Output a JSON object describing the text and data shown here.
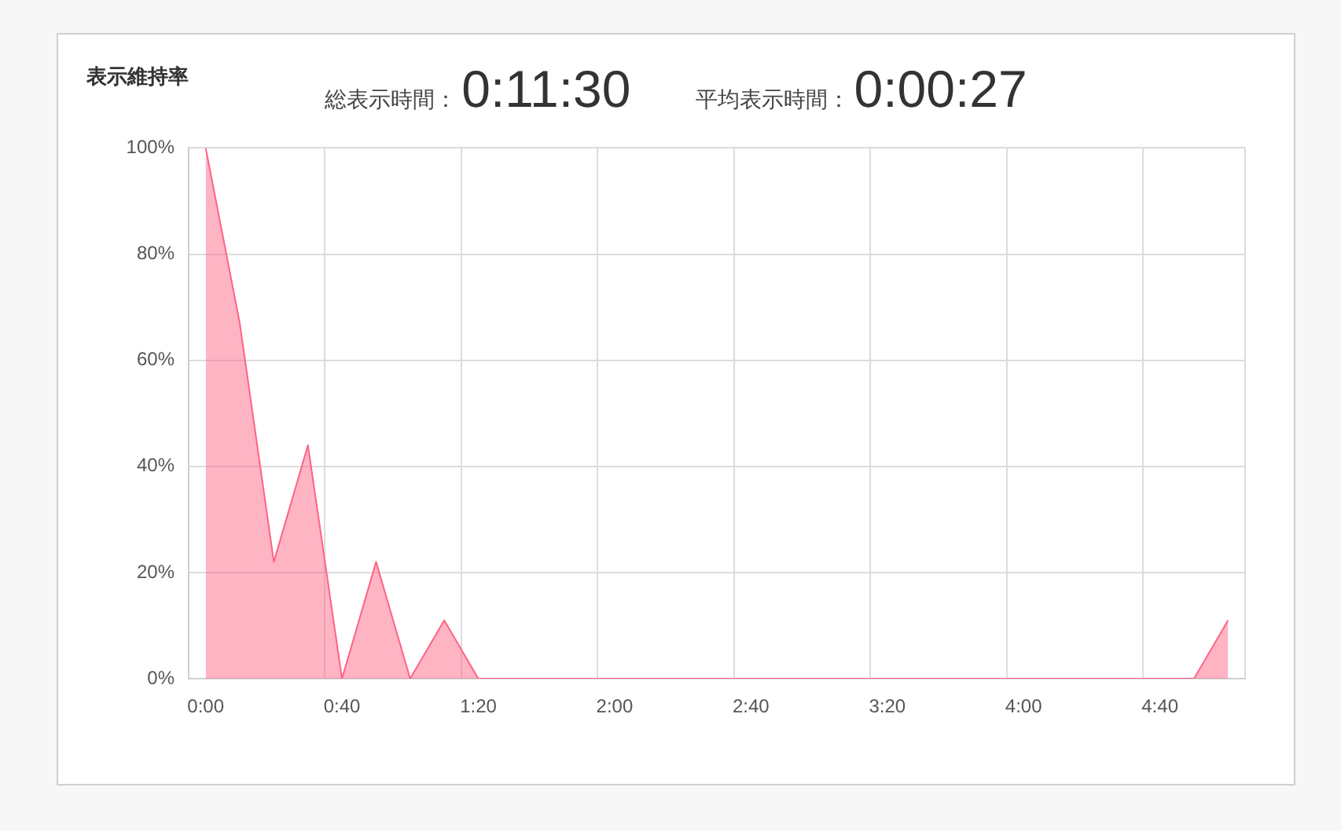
{
  "chart_data": {
    "type": "area",
    "title": "表示維持率",
    "annotations": [
      "総表示時間：",
      "0:11:30",
      "平均表示時間：",
      "0:00:27"
    ],
    "categories": [
      "0:00",
      null,
      null,
      null,
      "0:40",
      null,
      null,
      null,
      "1:20",
      null,
      null,
      null,
      "2:00",
      null,
      null,
      null,
      "2:40",
      null,
      null,
      null,
      "3:20",
      null,
      null,
      null,
      "4:00",
      null,
      null,
      null,
      "4:40",
      null,
      null
    ],
    "values": [
      100,
      67,
      22,
      44,
      0,
      22,
      0,
      11,
      0,
      0,
      0,
      0,
      0,
      0,
      0,
      0,
      0,
      0,
      0,
      0,
      0,
      0,
      0,
      0,
      0,
      0,
      0,
      0,
      0,
      0,
      11
    ],
    "color": "#ff6384",
    "ylim": [
      0,
      100
    ],
    "yticks": [
      {
        "value": 0,
        "label": "0%"
      },
      {
        "value": 20,
        "label": "20%"
      },
      {
        "value": 40,
        "label": "40%"
      },
      {
        "value": 60,
        "label": "60%"
      },
      {
        "value": 80,
        "label": "80%"
      },
      {
        "value": 100,
        "label": "100%"
      }
    ],
    "grid": true
  }
}
